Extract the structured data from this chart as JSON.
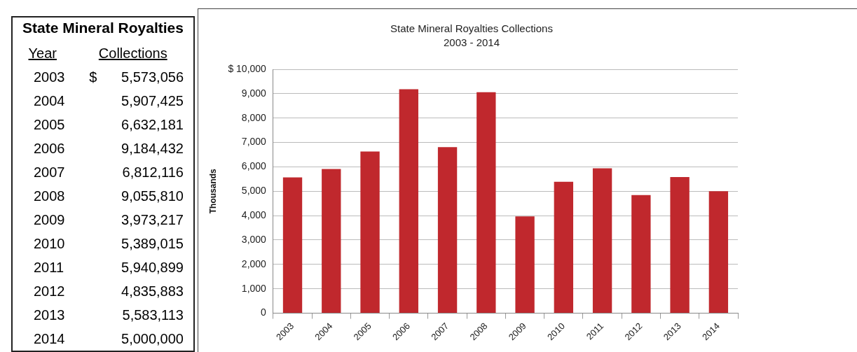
{
  "chart_data": [
    {
      "type": "other",
      "annotations": [
        "State Mineral Royalties",
        "Year",
        "Collections",
        "2003",
        "$ 5,573,056",
        "2004",
        "5,907,425",
        "2005",
        "6,632,181",
        "2006",
        "9,184,432",
        "2007",
        "6,812,116",
        "2008",
        "9,055,810",
        "2009",
        "3,973,217",
        "2010",
        "5,389,015",
        "2011",
        "5,940,899",
        "2012",
        "4,835,883",
        "2013",
        "5,583,113",
        "2014",
        "5,000,000"
      ]
    },
    {
      "type": "bar",
      "title": "State Mineral Royalties Collections",
      "subtitle": "2003 - 2014",
      "ylabel": "Thousands",
      "categories": [
        "2003",
        "2004",
        "2005",
        "2006",
        "2007",
        "2008",
        "2009",
        "2010",
        "2011",
        "2012",
        "2013",
        "2014"
      ],
      "values": [
        5570,
        5910,
        6630,
        9180,
        6810,
        9060,
        3970,
        5390,
        5940,
        4840,
        5580,
        5000
      ],
      "color": "#c0282d",
      "ylim": [
        0,
        10000
      ],
      "yticks": [
        0,
        {
          "value": 1000,
          "label": "1,000"
        },
        {
          "value": 2000,
          "label": "2,000"
        },
        {
          "value": 3000,
          "label": "3,000"
        },
        {
          "value": 4000,
          "label": "4,000"
        },
        {
          "value": 5000,
          "label": "5,000"
        },
        {
          "value": 6000,
          "label": "6,000"
        },
        {
          "value": 7000,
          "label": "7,000"
        },
        {
          "value": 8000,
          "label": "8,000"
        },
        {
          "value": 9000,
          "label": "9,000"
        },
        {
          "value": 10000,
          "label": "$ 10,000"
        }
      ],
      "grid": "y",
      "legend": false
    }
  ]
}
